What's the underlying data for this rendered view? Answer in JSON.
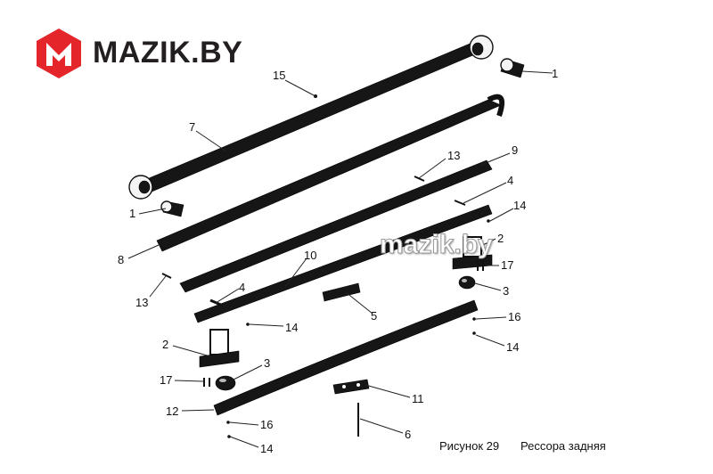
{
  "logo": {
    "text": "MAZIK.BY",
    "mark_color": "#e4262b",
    "text_color": "#231f20"
  },
  "watermark": "mazik.by",
  "callouts": {
    "c1a": "1",
    "c1b": "1",
    "c2a": "2",
    "c2b": "2",
    "c3a": "3",
    "c3b": "3",
    "c4a": "4",
    "c4b": "4",
    "c5": "5",
    "c6": "6",
    "c7": "7",
    "c8": "8",
    "c9": "9",
    "c10": "10",
    "c11": "11",
    "c12": "12",
    "c13a": "13",
    "c13b": "13",
    "c14a": "14",
    "c14b": "14",
    "c14c": "14",
    "c14d": "14",
    "c15": "15",
    "c16a": "16",
    "c16b": "16",
    "c17a": "17",
    "c17b": "17"
  },
  "caption": {
    "figure": "Рисунок 29",
    "title": "Рессора задняя"
  }
}
